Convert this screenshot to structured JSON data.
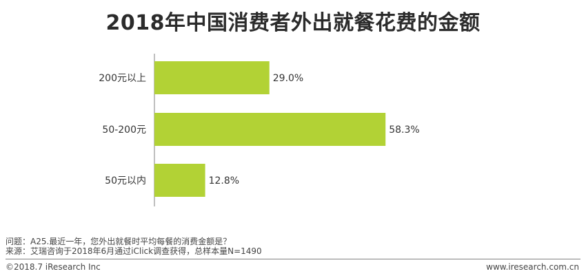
{
  "title": "2018年中国消费者外出就餐花费的金额",
  "chart_data": {
    "type": "bar",
    "orientation": "horizontal",
    "title": "2018年中国消费者外出就餐花费的金额",
    "categories": [
      "200元以上",
      "50-200元",
      "50元以内"
    ],
    "values": [
      29.0,
      58.3,
      12.8
    ],
    "value_labels": [
      "29.0%",
      "58.3%",
      "12.8%"
    ],
    "unit": "%",
    "bar_color": "#b2d235",
    "xlim": [
      0,
      100
    ],
    "grid": false,
    "legend": "none"
  },
  "footer": {
    "question": "问题：A25.最近一年，您外出就餐时平均每餐的消费金额是？",
    "source": "来源：艾瑞咨询于2018年6月通过iClick调查获得，总样本量N=1490",
    "copyright": "©2018.7 iResearch Inc",
    "website": "www.iresearch.com.cn"
  }
}
